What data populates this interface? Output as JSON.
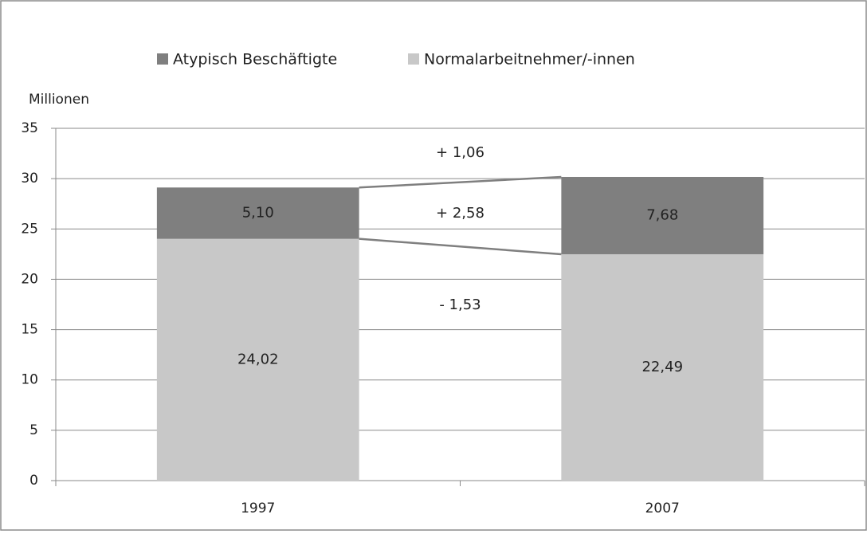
{
  "chart_data": {
    "type": "stacked_bar",
    "y_axis_label": "Millionen",
    "categories": [
      "1997",
      "2007"
    ],
    "series": [
      {
        "name": "Normalarbeitnehmer/-innen",
        "color": "#c8c8c8",
        "values": [
          24.02,
          22.49
        ],
        "value_labels": [
          "24,02",
          "22,49"
        ]
      },
      {
        "name": "Atypisch Beschäftigte",
        "color": "#7f7f7f",
        "values": [
          5.1,
          7.68
        ],
        "value_labels": [
          "5,10",
          "7,68"
        ]
      }
    ],
    "annotations": [
      "+ 1,06",
      "+ 2,58",
      "- 1,53"
    ],
    "ylim": [
      0,
      35
    ],
    "yticks": [
      0,
      5,
      10,
      15,
      20,
      25,
      30,
      35
    ],
    "grid": true
  }
}
